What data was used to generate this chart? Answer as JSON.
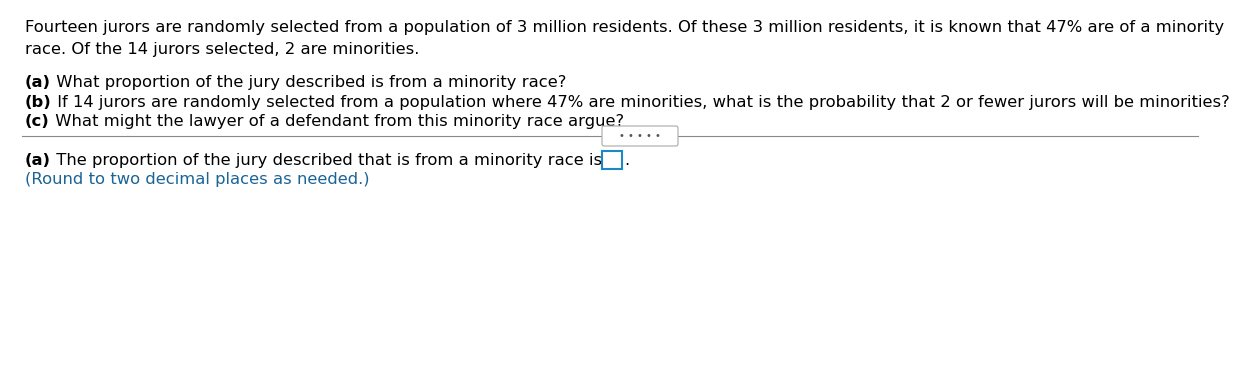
{
  "bg_color": "#ffffff",
  "text_color": "#000000",
  "blue_color": "#1a6496",
  "para1": "Fourteen jurors are randomly selected from a population of 3 million residents. Of these 3 million residents, it is known that 47% are of a minority",
  "para1b": "race. Of the 14 jurors selected, 2 are minorities.",
  "qa_label": "(a)",
  "qa_rest": " What proportion of the jury described is from a minority race?",
  "qb_label": "(b)",
  "qb_rest": " If 14 jurors are randomly selected from a population where 47% are minorities, what is the probability that 2 or fewer jurors will be minorities?",
  "qc_label": "(c)",
  "qc_rest": " What might the lawyer of a defendant from this minority race argue?",
  "divider_dots": "• • • • •",
  "answer_label": "(a)",
  "answer_rest": " The proportion of the jury described that is from a minority race is",
  "round_note": "(Round to two decimal places as needed.)",
  "font_size": 11.8,
  "line_color": "#888888",
  "box_color": "#1a8ac4"
}
